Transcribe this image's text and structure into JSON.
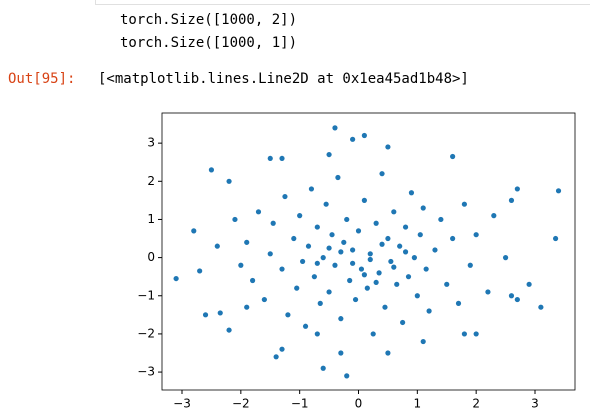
{
  "output": {
    "stdout": [
      "torch.Size([1000, 2])",
      "torch.Size([1000, 1])"
    ],
    "prompt": "Out[95]:",
    "result": "[<matplotlib.lines.Line2D at 0x1ea45ad1b48>]"
  },
  "chart_data": {
    "type": "scatter",
    "color": "#1f77b4",
    "x": [
      -3.1,
      -2.8,
      -2.5,
      -2.6,
      -2.2,
      -2.2,
      -1.5,
      -1.3,
      -0.5,
      -0.4,
      -0.1,
      0.1,
      0.5,
      1.6,
      2.7,
      2.6,
      3.4,
      3.35,
      3.1,
      2.9,
      2.6,
      2.7,
      -0.6,
      -0.2,
      -1.4,
      -0.3,
      -1.3,
      0.5,
      -0.7,
      2.0,
      -2.4,
      -2.7,
      -2.35,
      1.8,
      1.1,
      -1.9,
      -1.8,
      -1.7,
      -1.6,
      -1.5,
      -1.45,
      -1.3,
      -1.25,
      -1.2,
      -1.1,
      -1.05,
      -1.0,
      -0.95,
      -0.9,
      -0.85,
      -0.8,
      -0.75,
      -0.7,
      -0.65,
      -0.6,
      -0.55,
      -0.5,
      -0.45,
      -0.4,
      -0.35,
      -0.3,
      -0.25,
      -0.2,
      -0.15,
      -0.1,
      -0.05,
      0.0,
      0.05,
      0.1,
      0.15,
      0.2,
      0.25,
      0.3,
      0.35,
      0.4,
      0.45,
      0.5,
      0.55,
      0.6,
      0.65,
      0.7,
      0.75,
      0.8,
      0.85,
      0.9,
      0.95,
      1.0,
      1.05,
      1.1,
      1.15,
      1.2,
      1.3,
      1.4,
      1.5,
      1.6,
      1.7,
      1.8,
      1.9,
      2.0,
      2.2,
      2.3,
      2.5,
      -2.0,
      -2.1,
      -1.9,
      0.2,
      -0.3,
      0.4,
      0.1,
      -0.5,
      0.6,
      -0.1,
      0.3,
      -0.7,
      0.8
    ],
    "values": [
      -0.55,
      0.7,
      2.3,
      -1.5,
      2.0,
      -1.9,
      2.6,
      2.6,
      2.7,
      3.4,
      3.1,
      3.2,
      2.9,
      2.65,
      1.8,
      1.5,
      1.75,
      0.5,
      -1.3,
      -0.7,
      -1.0,
      -1.1,
      -2.9,
      -3.1,
      -2.6,
      -2.5,
      -2.4,
      -2.5,
      -2.0,
      -2.0,
      0.3,
      -0.35,
      -1.45,
      -2.0,
      -2.2,
      0.4,
      -0.6,
      1.2,
      -1.1,
      0.1,
      0.9,
      -0.3,
      1.6,
      -1.5,
      0.5,
      -0.8,
      1.1,
      -0.1,
      -1.8,
      0.3,
      1.8,
      -0.5,
      0.8,
      -1.2,
      0.0,
      1.4,
      -0.9,
      0.6,
      -0.2,
      2.1,
      -1.6,
      0.4,
      1.0,
      -0.6,
      0.2,
      -1.1,
      0.7,
      -0.3,
      1.5,
      -0.8,
      0.1,
      -2.0,
      0.9,
      -0.4,
      2.2,
      -1.3,
      0.5,
      -0.1,
      1.2,
      -0.7,
      0.3,
      -1.7,
      0.8,
      -0.5,
      1.7,
      0.0,
      -1.0,
      0.6,
      1.3,
      -0.3,
      -1.4,
      0.2,
      1.0,
      -0.7,
      0.5,
      -1.2,
      1.4,
      -0.2,
      0.6,
      -0.9,
      1.1,
      0.0,
      -0.2,
      1.0,
      -1.3,
      -0.05,
      0.15,
      0.35,
      -0.45,
      0.25,
      -0.25,
      -0.15,
      -0.65,
      -0.15,
      0.15
    ],
    "xlim": [
      -3.34,
      3.68
    ],
    "ylim": [
      -3.47,
      3.79
    ],
    "xticks": [
      {
        "value": -3,
        "label": "−3"
      },
      {
        "value": -2,
        "label": "−2"
      },
      {
        "value": -1,
        "label": "−1"
      },
      0,
      1,
      2,
      3
    ],
    "yticks": [
      {
        "value": -3,
        "label": "−3"
      },
      {
        "value": -2,
        "label": "−2"
      },
      {
        "value": -1,
        "label": "−1"
      },
      0,
      1,
      2,
      3
    ]
  }
}
